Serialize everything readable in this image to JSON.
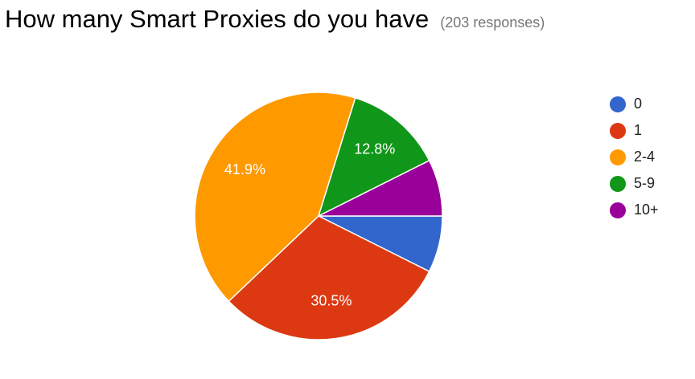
{
  "header": {
    "title": "How many Smart Proxies do you have",
    "responses": "(203 responses)"
  },
  "chart_data": {
    "type": "pie",
    "title": "How many Smart Proxies do you have",
    "subtitle": "(203 responses)",
    "legend_position": "right",
    "slices": [
      {
        "label": "0",
        "percent": 7.4,
        "color": "#3366cc",
        "data_label": ""
      },
      {
        "label": "1",
        "percent": 30.5,
        "color": "#dc3912",
        "data_label": "30.5%"
      },
      {
        "label": "2-4",
        "percent": 41.9,
        "color": "#ff9900",
        "data_label": "41.9%"
      },
      {
        "label": "5-9",
        "percent": 12.8,
        "color": "#109618",
        "data_label": "12.8%"
      },
      {
        "label": "10+",
        "percent": 7.4,
        "color": "#990099",
        "data_label": ""
      }
    ]
  }
}
